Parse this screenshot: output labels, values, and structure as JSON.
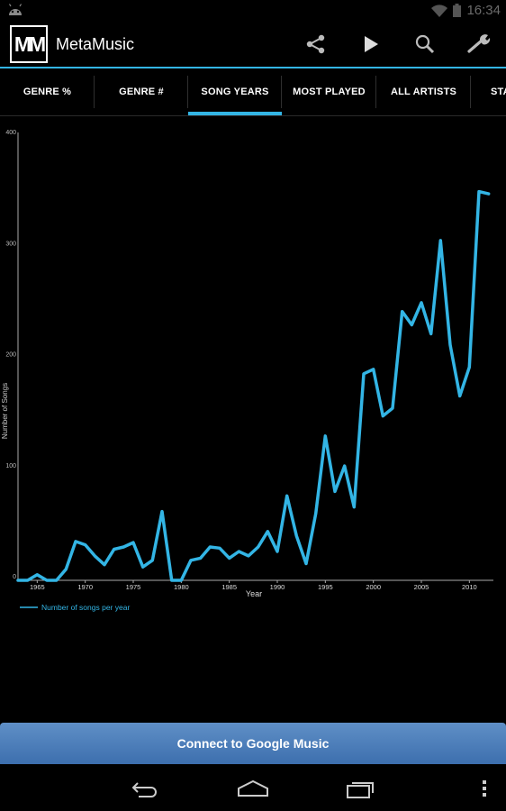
{
  "status_bar": {
    "time": "16:34",
    "icons": [
      "android-icon",
      "wifi-icon",
      "battery-icon"
    ]
  },
  "action_bar": {
    "logo_text": "MM",
    "title": "MetaMusic",
    "actions": [
      "share-icon",
      "play-icon",
      "search-icon",
      "wrench-icon"
    ]
  },
  "tabs": [
    {
      "label": "GENRE %",
      "active": false
    },
    {
      "label": "GENRE #",
      "active": false
    },
    {
      "label": "SONG YEARS",
      "active": true
    },
    {
      "label": "MOST PLAYED",
      "active": false
    },
    {
      "label": "ALL ARTISTS",
      "active": false
    },
    {
      "label": "STA",
      "active": false
    }
  ],
  "chart_data": {
    "type": "line",
    "xlabel": "Year",
    "ylabel": "Number of Songs",
    "xlim": [
      1963,
      2012.5
    ],
    "ylim": [
      0,
      400
    ],
    "x_ticks": [
      1965,
      1970,
      1975,
      1980,
      1985,
      1990,
      1995,
      2000,
      2005,
      2010
    ],
    "y_ticks": [
      0,
      100,
      200,
      300,
      400
    ],
    "legend_position": "bottom-left",
    "grid": false,
    "color": "#33b5e5",
    "series": [
      {
        "name": "Number of songs per year",
        "x": [
          1963,
          1964,
          1965,
          1966,
          1967,
          1968,
          1969,
          1970,
          1971,
          1972,
          1973,
          1974,
          1975,
          1976,
          1977,
          1978,
          1979,
          1980,
          1981,
          1982,
          1983,
          1984,
          1985,
          1986,
          1987,
          1988,
          1989,
          1990,
          1991,
          1992,
          1993,
          1994,
          1995,
          1996,
          1997,
          1998,
          1999,
          2000,
          2001,
          2002,
          2003,
          2004,
          2005,
          2006,
          2007,
          2008,
          2009,
          2010,
          2011,
          2012
        ],
        "y": [
          0,
          0,
          5,
          0,
          0,
          10,
          35,
          32,
          22,
          14,
          28,
          30,
          34,
          12,
          18,
          62,
          0,
          0,
          18,
          20,
          30,
          29,
          20,
          26,
          22,
          30,
          44,
          26,
          76,
          40,
          15,
          60,
          130,
          80,
          103,
          66,
          186,
          190,
          148,
          155,
          242,
          230,
          250,
          222,
          306,
          212,
          166,
          192,
          350,
          348
        ]
      }
    ]
  },
  "connect_button": {
    "label": "Connect to Google Music"
  },
  "nav_bar": {
    "buttons": [
      "back-icon",
      "home-icon",
      "recent-apps-icon",
      "overflow-menu-icon"
    ]
  }
}
